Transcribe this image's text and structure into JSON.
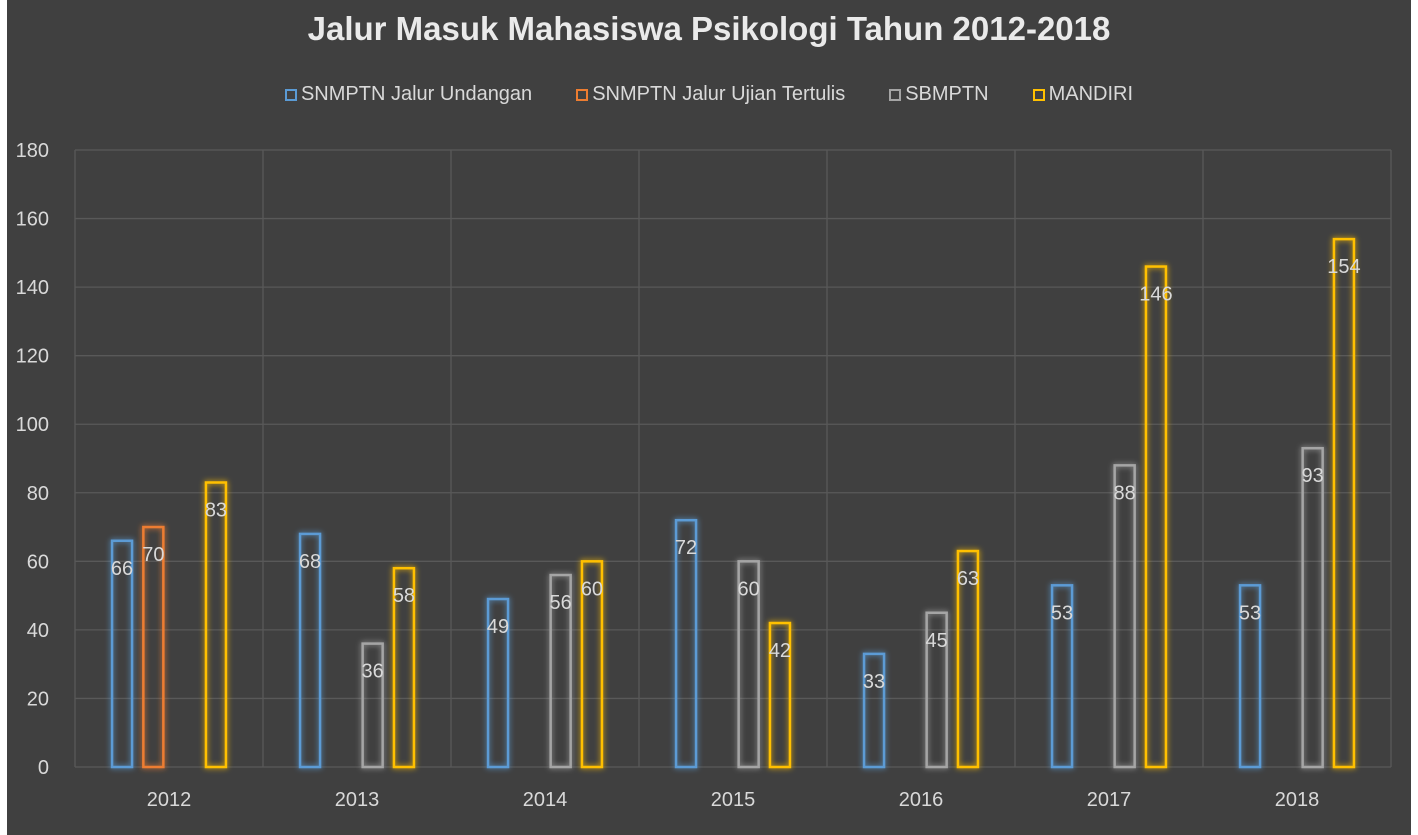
{
  "chart_data": {
    "type": "bar",
    "title": "Jalur Masuk Mahasiswa Psikologi Tahun 2012-2018",
    "categories": [
      "2012",
      "2013",
      "2014",
      "2015",
      "2016",
      "2017",
      "2018"
    ],
    "series": [
      {
        "name": "SNMPTN Jalur Undangan",
        "color": "#5b9bd5",
        "values": [
          66,
          68,
          49,
          72,
          33,
          53,
          53
        ]
      },
      {
        "name": "SNMPTN Jalur Ujian Tertulis",
        "color": "#ed7d31",
        "values": [
          70,
          null,
          null,
          null,
          null,
          null,
          null
        ]
      },
      {
        "name": "SBMPTN",
        "color": "#a5a5a5",
        "values": [
          null,
          36,
          56,
          60,
          45,
          88,
          93
        ]
      },
      {
        "name": "MANDIRI",
        "color": "#ffc000",
        "values": [
          83,
          58,
          60,
          42,
          63,
          146,
          154
        ]
      }
    ],
    "ylim": [
      0,
      180
    ],
    "yticks": [
      0,
      20,
      40,
      60,
      80,
      100,
      120,
      140,
      160,
      180
    ],
    "grid": true,
    "legend_position": "top"
  },
  "colors": {
    "background": "#404040",
    "gridline": "#595959",
    "axis_text": "#d9d9d9",
    "title_text": "#eaeaea"
  }
}
